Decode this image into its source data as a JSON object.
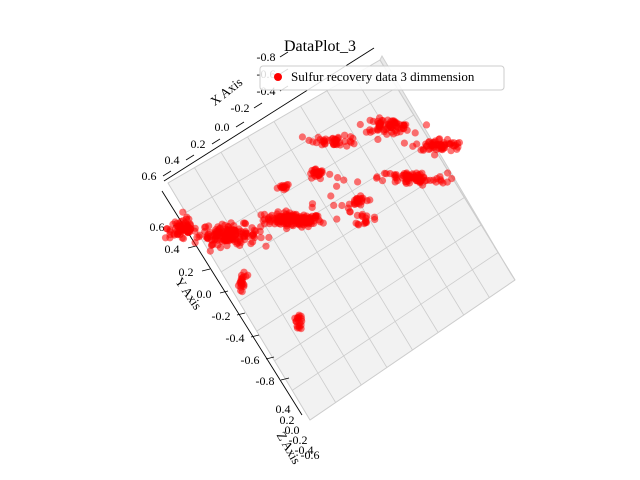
{
  "chart_data": {
    "type": "scatter",
    "projection": "3d",
    "title": "DataPlot_3",
    "xlabel": "X Axis",
    "ylabel": "Y Axis",
    "zlabel": "Z Axis",
    "legend": {
      "entry": "Sulfur recovery data 3 dimmension",
      "location": "top-right"
    },
    "grid": true,
    "marker_color": "#ff0000",
    "pane_color": "#f2f2f2",
    "grid_color": "#cccccc",
    "x_ticks": [
      "-0.8",
      "-0.6",
      "-0.4",
      "-0.2",
      "0.0",
      "0.2",
      "0.4",
      "0.6"
    ],
    "y_ticks": [
      "0.6",
      "0.4",
      "0.2",
      "0.0",
      "-0.2",
      "-0.4",
      "-0.6",
      "-0.8"
    ],
    "z_ticks": [
      "0.4",
      "0.2",
      "0.0",
      "-0.2",
      "-0.4",
      "-0.6"
    ],
    "clusters": [
      {
        "x": 0.25,
        "y": 0.28,
        "z": 0.0,
        "n": 140,
        "sx": 0.06,
        "sy": 0.02
      },
      {
        "x": 0.0,
        "y": 0.18,
        "z": 0.0,
        "n": 160,
        "sx": 0.06,
        "sy": 0.03
      },
      {
        "x": -0.2,
        "y": 0.2,
        "z": 0.0,
        "n": 70,
        "sx": 0.03,
        "sy": 0.03
      },
      {
        "x": 0.1,
        "y": -0.1,
        "z": 0.0,
        "n": 22,
        "sx": 0.01,
        "sy": 0.03
      },
      {
        "x": 0.3,
        "y": 0.55,
        "z": 0.0,
        "n": 26,
        "sx": 0.015,
        "sy": 0.015
      },
      {
        "x": 0.18,
        "y": 0.47,
        "z": 0.0,
        "n": 14,
        "sx": 0.01,
        "sy": 0.01
      },
      {
        "x": 0.5,
        "y": 0.4,
        "z": 0.0,
        "n": 22,
        "sx": 0.015,
        "sy": 0.015
      },
      {
        "x": 0.35,
        "y": 0.75,
        "z": 0.0,
        "n": 40,
        "sx": 0.05,
        "sy": 0.015
      },
      {
        "x": 0.55,
        "y": 0.85,
        "z": 0.0,
        "n": 70,
        "sx": 0.05,
        "sy": 0.02
      },
      {
        "x": 0.7,
        "y": 0.55,
        "z": 0.0,
        "n": 80,
        "sx": 0.07,
        "sy": 0.02
      },
      {
        "x": 0.78,
        "y": 0.75,
        "z": 0.0,
        "n": 60,
        "sx": 0.05,
        "sy": 0.02
      },
      {
        "x": 0.55,
        "y": 0.3,
        "z": 0.0,
        "n": 16,
        "sx": 0.015,
        "sy": 0.02
      },
      {
        "x": 0.4,
        "y": 0.45,
        "z": 0.0,
        "n": 16,
        "sx": 0.08,
        "sy": 0.08
      }
    ]
  }
}
